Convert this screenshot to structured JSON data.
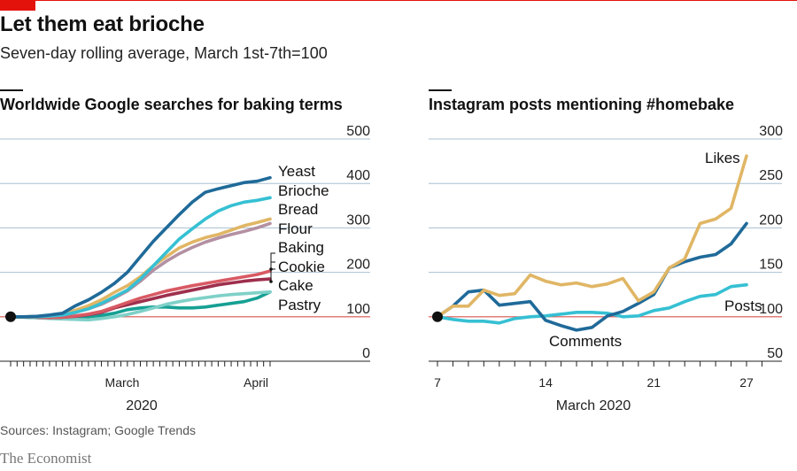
{
  "header": {
    "title": "Let them eat brioche",
    "subtitle": "Seven-day rolling average, March 1st-7th=100"
  },
  "footer": {
    "source": "Sources: Instagram; Google Trends",
    "brand": "The Economist"
  },
  "colors": {
    "accent": "#e3120b",
    "grid": "#a9bfd0",
    "baseline": "#d9534f",
    "dark_blue": "#1f6a99",
    "light_blue": "#36c0d3",
    "gold": "#e0b665",
    "mauve": "#b390a2",
    "red": "#d85a64",
    "dark_red": "#9e2f4d",
    "pale_teal": "#7fd1c8",
    "teal": "#16a094"
  },
  "chart_data": [
    {
      "type": "line",
      "title": "Worldwide Google searches for baking terms",
      "xlabel": "2020",
      "x_tick_labels": [
        "March",
        "April"
      ],
      "ylim": [
        0,
        500
      ],
      "y_ticks": [
        0,
        100,
        200,
        300,
        400,
        500
      ],
      "y_tick_labels": [
        "0",
        "100",
        "200",
        "300",
        "400",
        "500"
      ],
      "baseline": 100,
      "grid": true,
      "x": [
        0,
        2,
        4,
        6,
        8,
        10,
        12,
        14,
        16,
        18,
        20,
        22,
        24,
        26,
        28,
        30,
        32,
        34,
        36,
        38,
        40
      ],
      "series": [
        {
          "name": "Yeast",
          "color": "#1f6a99",
          "values": [
            100,
            100,
            101,
            104,
            108,
            125,
            138,
            155,
            175,
            200,
            235,
            270,
            300,
            330,
            358,
            380,
            388,
            395,
            402,
            405,
            413
          ]
        },
        {
          "name": "Brioche",
          "color": "#36c0d3",
          "values": [
            100,
            100,
            100,
            102,
            104,
            110,
            118,
            130,
            145,
            160,
            185,
            215,
            245,
            275,
            298,
            320,
            338,
            350,
            358,
            362,
            368
          ]
        },
        {
          "name": "Bread",
          "color": "#e0b665",
          "values": [
            100,
            100,
            100,
            103,
            106,
            115,
            125,
            138,
            155,
            170,
            190,
            215,
            235,
            255,
            268,
            278,
            285,
            295,
            305,
            312,
            320
          ]
        },
        {
          "name": "Flour",
          "color": "#b390a2",
          "values": [
            100,
            100,
            101,
            101,
            104,
            110,
            118,
            128,
            142,
            158,
            180,
            205,
            225,
            242,
            256,
            268,
            277,
            285,
            292,
            300,
            310
          ]
        },
        {
          "name": "Baking",
          "color": "#d85a64",
          "values": [
            100,
            100,
            99,
            98,
            99,
            102,
            106,
            112,
            122,
            132,
            142,
            150,
            158,
            164,
            170,
            175,
            180,
            185,
            190,
            195,
            203
          ]
        },
        {
          "name": "Cookie",
          "color": "#9e2f4d",
          "values": [
            100,
            100,
            99,
            98,
            99,
            101,
            105,
            110,
            120,
            127,
            134,
            141,
            148,
            154,
            160,
            166,
            172,
            176,
            180,
            183,
            185
          ]
        },
        {
          "name": "Cake",
          "color": "#7fd1c8",
          "values": [
            100,
            100,
            98,
            96,
            95,
            94,
            93,
            96,
            100,
            105,
            112,
            120,
            128,
            134,
            139,
            143,
            147,
            150,
            152,
            154,
            156
          ]
        },
        {
          "name": "Pastry",
          "color": "#16a094",
          "values": [
            100,
            99,
            98,
            97,
            97,
            98,
            100,
            103,
            108,
            116,
            120,
            122,
            122,
            120,
            120,
            122,
            126,
            130,
            134,
            142,
            156
          ]
        }
      ]
    },
    {
      "type": "line",
      "title": "Instagram posts mentioning #homebake",
      "xlabel": "March 2020",
      "x_ticks": [
        7,
        14,
        21,
        27
      ],
      "x_tick_labels": [
        "7",
        "14",
        "21",
        "27"
      ],
      "ylim": [
        50,
        300
      ],
      "y_ticks": [
        50,
        100,
        150,
        200,
        250,
        300
      ],
      "y_tick_labels": [
        "50",
        "100",
        "150",
        "200",
        "250",
        "300"
      ],
      "baseline": 100,
      "grid": true,
      "x": [
        7,
        8,
        9,
        10,
        11,
        12,
        13,
        14,
        15,
        16,
        17,
        18,
        19,
        20,
        21,
        22,
        23,
        24,
        25,
        26,
        27
      ],
      "series": [
        {
          "name": "Likes",
          "color": "#e0b665",
          "values": [
            100,
            112,
            112,
            130,
            124,
            126,
            147,
            140,
            136,
            138,
            134,
            137,
            143,
            118,
            128,
            155,
            165,
            205,
            210,
            222,
            281
          ]
        },
        {
          "name": "Comments",
          "color": "#1f6a99",
          "values": [
            100,
            112,
            128,
            130,
            113,
            115,
            117,
            96,
            90,
            85,
            88,
            101,
            106,
            115,
            125,
            155,
            162,
            167,
            170,
            182,
            205
          ]
        },
        {
          "name": "Posts",
          "color": "#36c0d3",
          "values": [
            100,
            97,
            95,
            95,
            93,
            98,
            100,
            101,
            103,
            105,
            105,
            104,
            100,
            101,
            107,
            110,
            117,
            123,
            125,
            134,
            136
          ]
        }
      ]
    }
  ]
}
